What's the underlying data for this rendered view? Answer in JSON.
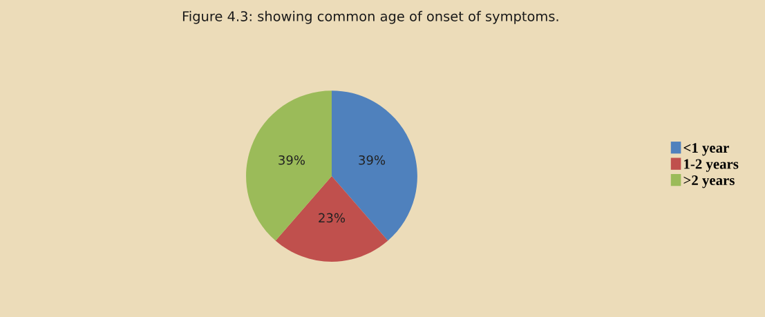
{
  "chart_data": {
    "type": "pie",
    "title": "Figure 4.3: showing common age of onset of symptoms.",
    "categories": [
      "<1 year",
      "1-2 years",
      ">2 years"
    ],
    "values": [
      39,
      23,
      39
    ],
    "colors": [
      "#4f81bd",
      "#c0504d",
      "#9bbb59"
    ],
    "value_labels": [
      "39%",
      "23%",
      "39%"
    ],
    "legend": "right"
  }
}
